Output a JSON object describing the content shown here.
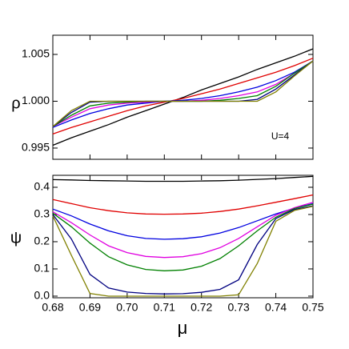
{
  "chart_data": [
    {
      "type": "line",
      "ylabel": "ρ",
      "annotation": "U=4",
      "x": [
        0.68,
        0.685,
        0.69,
        0.695,
        0.7,
        0.705,
        0.71,
        0.715,
        0.72,
        0.725,
        0.73,
        0.735,
        0.74,
        0.745,
        0.75
      ],
      "ylim": [
        0.9938,
        1.00705
      ],
      "yticks": [
        0.995,
        {
          "value": 1.0,
          "label": "1.000"
        },
        1.005
      ],
      "series": [
        {
          "color": "#000000",
          "values": [
            0.9953,
            0.9961,
            0.9968,
            0.9975,
            0.9983,
            0.999,
            0.9997,
            1.0004,
            1.0012,
            1.0019,
            1.0026,
            1.0034,
            1.0041,
            1.0048,
            1.0056
          ]
        },
        {
          "color": "#e00000",
          "values": [
            0.9965,
            0.9972,
            0.9978,
            0.9984,
            0.999,
            0.9995,
            0.9999,
            1.0003,
            1.0008,
            1.0013,
            1.0019,
            1.0025,
            1.0031,
            1.0038,
            1.0046
          ]
        },
        {
          "color": "#0000e0",
          "values": [
            0.9972,
            0.998,
            0.9987,
            0.9992,
            0.9996,
            0.9998,
            1.0,
            1.0001,
            1.0003,
            1.0006,
            1.001,
            1.0015,
            1.0022,
            1.0031,
            1.0043
          ]
        },
        {
          "color": "#e000e0",
          "values": [
            0.9973,
            0.9983,
            0.9992,
            0.9996,
            0.9998,
            0.9999,
            1.0,
            1.0,
            1.0001,
            1.0003,
            1.0006,
            1.001,
            1.0018,
            1.003,
            1.0043
          ]
        },
        {
          "color": "#008000",
          "values": [
            0.9973,
            0.9985,
            0.9995,
            0.9998,
            0.9999,
            1.0,
            1.0,
            1.0,
            1.0,
            1.0001,
            1.0003,
            1.0006,
            1.0016,
            1.003,
            1.0043
          ]
        },
        {
          "color": "#000080",
          "values": [
            0.9973,
            0.9988,
            0.9999,
            1.0,
            1.0,
            1.0,
            1.0,
            1.0,
            1.0,
            1.0,
            1.0,
            1.0002,
            1.0013,
            1.0028,
            1.0043
          ]
        },
        {
          "color": "#808000",
          "values": [
            0.9973,
            0.999,
            1.0,
            1.0,
            1.0,
            1.0,
            1.0,
            1.0,
            1.0,
            1.0,
            1.0,
            1.0,
            1.001,
            1.0027,
            1.0043
          ]
        }
      ]
    },
    {
      "type": "line",
      "ylabel": "ψ",
      "xlabel": "μ",
      "x": [
        0.68,
        0.685,
        0.69,
        0.695,
        0.7,
        0.705,
        0.71,
        0.715,
        0.72,
        0.725,
        0.73,
        0.735,
        0.74,
        0.745,
        0.75
      ],
      "xlim": [
        0.68,
        0.75
      ],
      "xticks": [
        0.68,
        0.69,
        {
          "value": 0.7,
          "label": "0.70"
        },
        0.71,
        0.72,
        0.73,
        0.74,
        0.75
      ],
      "ylim": [
        -0.006,
        0.444
      ],
      "yticks": [
        {
          "value": 0,
          "label": "0.0"
        },
        0.1,
        0.2,
        0.3,
        0.4
      ],
      "series": [
        {
          "color": "#000000",
          "values": [
            0.428,
            0.427,
            0.425,
            0.424,
            0.423,
            0.422,
            0.422,
            0.422,
            0.423,
            0.424,
            0.426,
            0.429,
            0.432,
            0.436,
            0.44
          ]
        },
        {
          "color": "#e00000",
          "values": [
            0.355,
            0.34,
            0.325,
            0.314,
            0.306,
            0.302,
            0.301,
            0.302,
            0.305,
            0.311,
            0.32,
            0.332,
            0.345,
            0.358,
            0.372
          ]
        },
        {
          "color": "#0000e0",
          "values": [
            0.32,
            0.295,
            0.265,
            0.24,
            0.222,
            0.212,
            0.209,
            0.211,
            0.218,
            0.232,
            0.252,
            0.277,
            0.302,
            0.323,
            0.34
          ]
        },
        {
          "color": "#e000e0",
          "values": [
            0.31,
            0.27,
            0.225,
            0.185,
            0.16,
            0.146,
            0.142,
            0.145,
            0.156,
            0.178,
            0.212,
            0.255,
            0.297,
            0.325,
            0.345
          ]
        },
        {
          "color": "#008000",
          "values": [
            0.305,
            0.255,
            0.195,
            0.145,
            0.115,
            0.098,
            0.093,
            0.096,
            0.11,
            0.138,
            0.185,
            0.24,
            0.29,
            0.322,
            0.338
          ]
        },
        {
          "color": "#000080",
          "values": [
            0.3,
            0.21,
            0.08,
            0.03,
            0.015,
            0.01,
            0.008,
            0.009,
            0.014,
            0.025,
            0.06,
            0.19,
            0.285,
            0.318,
            0.332
          ]
        },
        {
          "color": "#808000",
          "values": [
            0.295,
            0.15,
            0.01,
            0,
            0,
            0,
            0,
            0,
            0,
            0,
            0.005,
            0.12,
            0.275,
            0.315,
            0.33
          ]
        }
      ]
    }
  ]
}
